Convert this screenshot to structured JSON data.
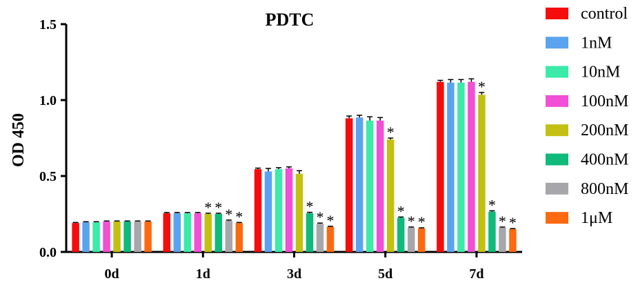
{
  "chart_data": {
    "type": "bar",
    "title": "PDTC",
    "xlabel": "",
    "ylabel": "OD 450",
    "ylim": [
      0,
      1.5
    ],
    "yticks": [
      "0.0",
      "0.5",
      "1.0",
      "1.5"
    ],
    "categories": [
      "0d",
      "1d",
      "3d",
      "5d",
      "7d"
    ],
    "legend_position": "right",
    "series": [
      {
        "name": "control",
        "color": "#f50d0d",
        "values": [
          0.19,
          0.255,
          0.545,
          0.88,
          1.12
        ],
        "errors": [
          0.004,
          0.005,
          0.007,
          0.015,
          0.01
        ],
        "significant": [
          false,
          false,
          false,
          false,
          false
        ]
      },
      {
        "name": "1nM",
        "color": "#5ba3ee",
        "values": [
          0.195,
          0.255,
          0.53,
          0.885,
          1.115
        ],
        "errors": [
          0.004,
          0.005,
          0.02,
          0.015,
          0.02
        ],
        "significant": [
          false,
          false,
          false,
          false,
          false
        ]
      },
      {
        "name": "10nM",
        "color": "#3ceaaa",
        "values": [
          0.195,
          0.255,
          0.545,
          0.865,
          1.115
        ],
        "errors": [
          0.004,
          0.005,
          0.01,
          0.025,
          0.02
        ],
        "significant": [
          false,
          false,
          false,
          false,
          false
        ]
      },
      {
        "name": "100nM",
        "color": "#f04fd6",
        "values": [
          0.2,
          0.255,
          0.55,
          0.865,
          1.12
        ],
        "errors": [
          0.004,
          0.005,
          0.01,
          0.02,
          0.02
        ],
        "significant": [
          false,
          false,
          false,
          false,
          false
        ]
      },
      {
        "name": "200nM",
        "color": "#c3c013",
        "values": [
          0.2,
          0.25,
          0.515,
          0.74,
          1.035
        ],
        "errors": [
          0.004,
          0.005,
          0.02,
          0.01,
          0.015
        ],
        "significant": [
          false,
          true,
          false,
          true,
          true
        ]
      },
      {
        "name": "400nM",
        "color": "#0fba7a",
        "values": [
          0.2,
          0.25,
          0.255,
          0.225,
          0.265
        ],
        "errors": [
          0.004,
          0.005,
          0.006,
          0.005,
          0.006
        ],
        "significant": [
          false,
          true,
          true,
          true,
          true
        ]
      },
      {
        "name": "800nM",
        "color": "#a6a6ab",
        "values": [
          0.2,
          0.205,
          0.185,
          0.16,
          0.16
        ],
        "errors": [
          0.004,
          0.005,
          0.005,
          0.004,
          0.004
        ],
        "significant": [
          false,
          true,
          true,
          true,
          true
        ]
      },
      {
        "name": "1μM",
        "color": "#fb6a10",
        "values": [
          0.2,
          0.19,
          0.165,
          0.155,
          0.15
        ],
        "errors": [
          0.004,
          0.004,
          0.004,
          0.004,
          0.004
        ],
        "significant": [
          false,
          true,
          true,
          true,
          true
        ]
      }
    ],
    "significance_marker": "*"
  }
}
